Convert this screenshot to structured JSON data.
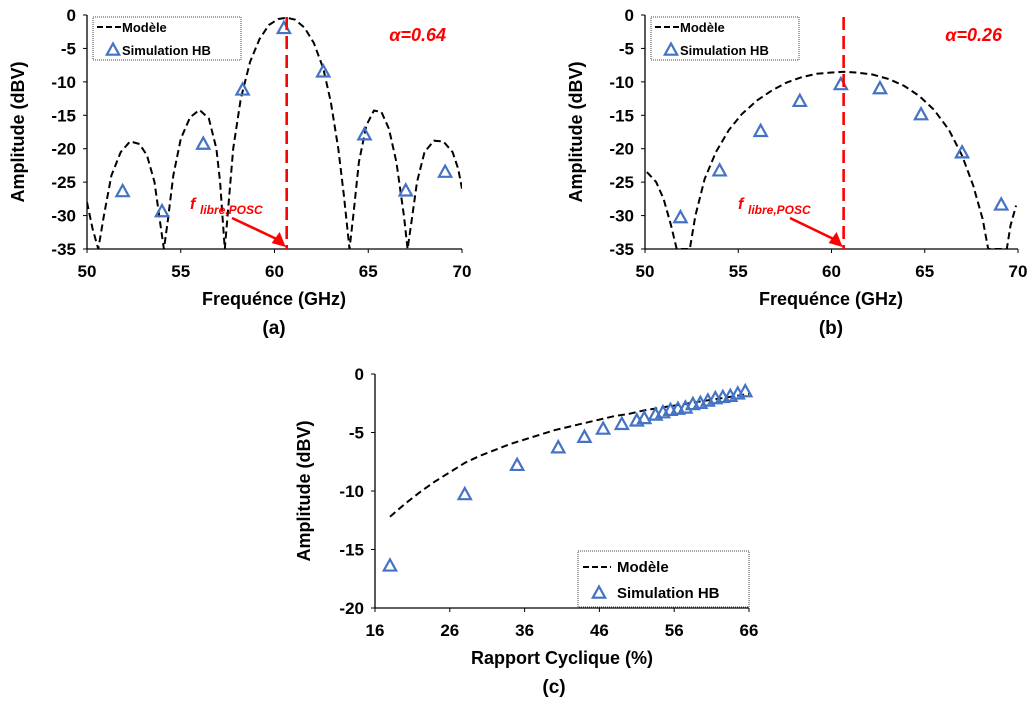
{
  "colors": {
    "model_line": "#000000",
    "marker": "#4472c4",
    "annotation": "#ff0000"
  },
  "chart_data": [
    {
      "id": "a",
      "type": "line",
      "panel_label": "(a)",
      "xlabel": "Frequénce (GHz)",
      "ylabel": "Amplitude (dBV)",
      "xlim": [
        50,
        70
      ],
      "ylim": [
        -35,
        0
      ],
      "xticks": [
        "50",
        "55",
        "60",
        "65",
        "70"
      ],
      "yticks": [
        "0",
        "-5",
        "-10",
        "-15",
        "-20",
        "-25",
        "-30",
        "-35"
      ],
      "alpha_label": "α=0.64",
      "annotation": {
        "text": "f",
        "subscript": "libre,POSC",
        "x": 60.65
      },
      "legend": {
        "position": "top-left",
        "entries": [
          "Modèle",
          "Simulation HB"
        ]
      },
      "series": [
        {
          "name": "Modèle",
          "style": "dashed",
          "points": [
            [
              50.0,
              -28.0
            ],
            [
              50.3,
              -32.0
            ],
            [
              50.6,
              -35.0
            ],
            [
              50.9,
              -30.0
            ],
            [
              51.3,
              -24.0
            ],
            [
              51.8,
              -20.5
            ],
            [
              52.3,
              -18.9
            ],
            [
              52.8,
              -19.3
            ],
            [
              53.2,
              -21.0
            ],
            [
              53.6,
              -25.0
            ],
            [
              53.9,
              -31.0
            ],
            [
              54.1,
              -35.0
            ],
            [
              54.3,
              -31.0
            ],
            [
              54.6,
              -24.0
            ],
            [
              55.0,
              -18.5
            ],
            [
              55.5,
              -15.3
            ],
            [
              56.0,
              -14.2
            ],
            [
              56.5,
              -15.5
            ],
            [
              56.9,
              -20.0
            ],
            [
              57.1,
              -25.0
            ],
            [
              57.25,
              -31.0
            ],
            [
              57.35,
              -35.0
            ],
            [
              57.5,
              -30.0
            ],
            [
              57.8,
              -20.0
            ],
            [
              58.2,
              -12.5
            ],
            [
              58.7,
              -7.0
            ],
            [
              59.2,
              -3.6
            ],
            [
              59.7,
              -1.5
            ],
            [
              60.2,
              -0.6
            ],
            [
              60.65,
              -0.4
            ],
            [
              61.1,
              -0.7
            ],
            [
              61.6,
              -1.9
            ],
            [
              62.1,
              -4.2
            ],
            [
              62.6,
              -8.0
            ],
            [
              63.0,
              -13.0
            ],
            [
              63.4,
              -20.0
            ],
            [
              63.7,
              -27.0
            ],
            [
              64.0,
              -35.0
            ],
            [
              64.2,
              -30.0
            ],
            [
              64.5,
              -22.0
            ],
            [
              64.9,
              -16.5
            ],
            [
              65.3,
              -14.3
            ],
            [
              65.7,
              -14.5
            ],
            [
              66.1,
              -17.0
            ],
            [
              66.5,
              -22.0
            ],
            [
              66.9,
              -30.0
            ],
            [
              67.1,
              -35.0
            ],
            [
              67.3,
              -31.0
            ],
            [
              67.6,
              -25.0
            ],
            [
              68.0,
              -20.5
            ],
            [
              68.5,
              -18.8
            ],
            [
              69.0,
              -18.9
            ],
            [
              69.5,
              -20.5
            ],
            [
              69.8,
              -23.0
            ],
            [
              70.0,
              -26.0
            ]
          ]
        },
        {
          "name": "Simulation HB",
          "style": "triangle",
          "points": [
            [
              51.9,
              -26.4
            ],
            [
              54.0,
              -29.4
            ],
            [
              56.2,
              -19.3
            ],
            [
              58.3,
              -11.2
            ],
            [
              60.5,
              -2.0
            ],
            [
              62.6,
              -8.5
            ],
            [
              64.8,
              -17.9
            ],
            [
              67.0,
              -26.3
            ],
            [
              69.1,
              -23.5
            ]
          ]
        }
      ]
    },
    {
      "id": "b",
      "type": "line",
      "panel_label": "(b)",
      "xlabel": "Frequénce (GHz)",
      "ylabel": "Amplitude (dBV)",
      "xlim": [
        50,
        70
      ],
      "ylim": [
        -35,
        0
      ],
      "xticks": [
        "50",
        "55",
        "60",
        "65",
        "70"
      ],
      "yticks": [
        "0",
        "-5",
        "-10",
        "-15",
        "-20",
        "-25",
        "-30",
        "-35"
      ],
      "alpha_label": "α=0.26",
      "annotation": {
        "text": "f",
        "subscript": "libre,POSC",
        "x": 60.65
      },
      "legend": {
        "position": "top-left",
        "entries": [
          "Modèle",
          "Simulation HB"
        ]
      },
      "series": [
        {
          "name": "Modèle",
          "style": "dashed",
          "points": [
            [
              50.1,
              -23.5
            ],
            [
              50.6,
              -25.0
            ],
            [
              51.0,
              -27.5
            ],
            [
              51.4,
              -31.5
            ],
            [
              51.7,
              -35.0
            ],
            [
              52.4,
              -35.0
            ],
            [
              52.7,
              -30.0
            ],
            [
              53.2,
              -24.5
            ],
            [
              53.8,
              -20.5
            ],
            [
              54.5,
              -17.2
            ],
            [
              55.2,
              -14.8
            ],
            [
              56.0,
              -12.8
            ],
            [
              56.8,
              -11.3
            ],
            [
              57.6,
              -10.1
            ],
            [
              58.4,
              -9.3
            ],
            [
              59.2,
              -8.8
            ],
            [
              60.0,
              -8.6
            ],
            [
              60.65,
              -8.5
            ],
            [
              61.3,
              -8.6
            ],
            [
              62.2,
              -8.9
            ],
            [
              63.1,
              -9.6
            ],
            [
              63.9,
              -10.6
            ],
            [
              64.7,
              -12.1
            ],
            [
              65.5,
              -14.2
            ],
            [
              66.3,
              -17.2
            ],
            [
              67.0,
              -21.0
            ],
            [
              67.6,
              -25.5
            ],
            [
              68.1,
              -30.5
            ],
            [
              68.4,
              -35.0
            ],
            [
              69.4,
              -35.0
            ],
            [
              69.6,
              -31.5
            ],
            [
              69.9,
              -28.5
            ]
          ]
        },
        {
          "name": "Simulation HB",
          "style": "triangle",
          "points": [
            [
              51.9,
              -30.3
            ],
            [
              54.0,
              -23.3
            ],
            [
              56.2,
              -17.4
            ],
            [
              58.3,
              -12.9
            ],
            [
              60.5,
              -10.4
            ],
            [
              62.6,
              -11.0
            ],
            [
              64.8,
              -14.9
            ],
            [
              67.0,
              -20.6
            ],
            [
              69.1,
              -28.4
            ]
          ]
        }
      ]
    },
    {
      "id": "c",
      "type": "line",
      "panel_label": "(c)",
      "xlabel": "Rapport Cyclique (%)",
      "ylabel": "Amplitude (dBV)",
      "xlim": [
        16,
        66
      ],
      "ylim": [
        -20,
        0
      ],
      "xticks": [
        "16",
        "26",
        "36",
        "46",
        "56",
        "66"
      ],
      "yticks": [
        "0",
        "-5",
        "-10",
        "-15",
        "-20"
      ],
      "legend": {
        "position": "bottom-right",
        "entries": [
          "Modèle",
          "Simulation HB"
        ]
      },
      "series": [
        {
          "name": "Modèle",
          "style": "dashed",
          "points": [
            [
              18,
              -12.2
            ],
            [
              20,
              -11.1
            ],
            [
              22,
              -10.1
            ],
            [
              24,
              -9.2
            ],
            [
              26,
              -8.4
            ],
            [
              28,
              -7.6
            ],
            [
              30,
              -7.0
            ],
            [
              32,
              -6.5
            ],
            [
              34,
              -6.0
            ],
            [
              36,
              -5.6
            ],
            [
              38,
              -5.2
            ],
            [
              40,
              -4.8
            ],
            [
              42,
              -4.5
            ],
            [
              44,
              -4.2
            ],
            [
              46,
              -3.9
            ],
            [
              48,
              -3.6
            ],
            [
              50,
              -3.4
            ],
            [
              52,
              -3.1
            ],
            [
              54,
              -2.9
            ],
            [
              56,
              -2.7
            ],
            [
              58,
              -2.5
            ],
            [
              60,
              -2.3
            ],
            [
              62,
              -2.1
            ],
            [
              64,
              -1.9
            ],
            [
              66,
              -1.7
            ]
          ]
        },
        {
          "name": "Simulation HB",
          "style": "triangle",
          "points": [
            [
              18,
              -16.4
            ],
            [
              28,
              -10.3
            ],
            [
              35,
              -7.8
            ],
            [
              40.5,
              -6.3
            ],
            [
              44,
              -5.4
            ],
            [
              46.5,
              -4.7
            ],
            [
              49,
              -4.3
            ],
            [
              51,
              -4.0
            ],
            [
              52,
              -3.8
            ],
            [
              53.5,
              -3.5
            ],
            [
              54.5,
              -3.3
            ],
            [
              55.5,
              -3.1
            ],
            [
              56.5,
              -3.0
            ],
            [
              57.5,
              -2.9
            ],
            [
              58.5,
              -2.6
            ],
            [
              59.5,
              -2.5
            ],
            [
              60.5,
              -2.3
            ],
            [
              61.5,
              -2.1
            ],
            [
              62.5,
              -2.0
            ],
            [
              63.5,
              -1.9
            ],
            [
              64.5,
              -1.7
            ],
            [
              65.5,
              -1.5
            ]
          ]
        }
      ]
    }
  ]
}
